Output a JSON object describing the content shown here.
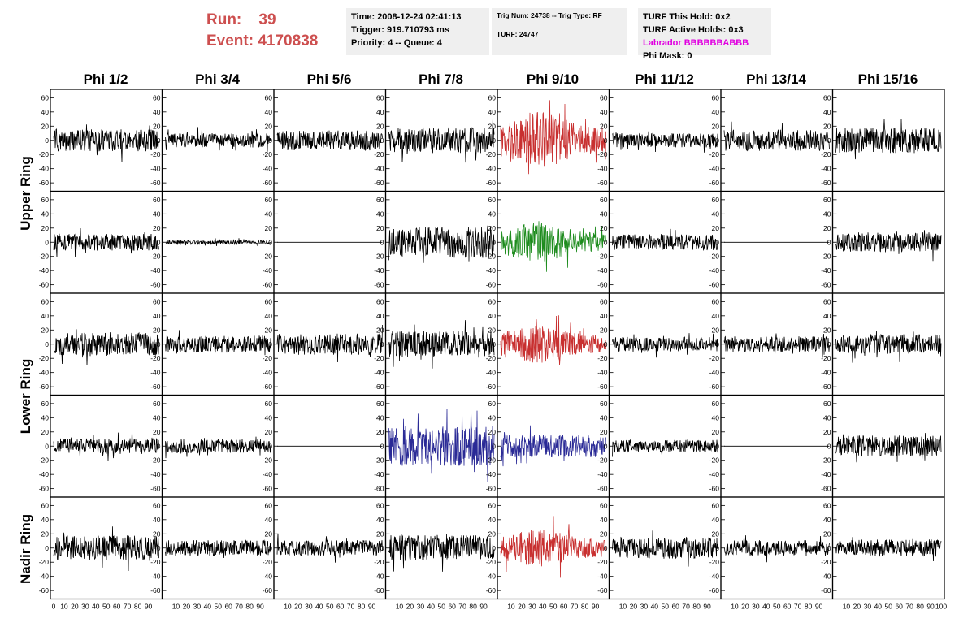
{
  "header": {
    "run_label": "Run:",
    "run_value": "39",
    "event_label": "Event:",
    "event_value": "4170838"
  },
  "info_box_1": {
    "time": "Time: 2008-12-24 02:41:13",
    "trigger": "Trigger: 919.710793 ms",
    "priority": "Priority: 4 -- Queue: 4"
  },
  "info_box_2": {
    "trig": "Trig Num: 24738 -- Trig Type: RF",
    "turf": "TURF: 24747"
  },
  "info_box_3": {
    "hold": "TURF This Hold: 0x2",
    "active": "TURF Active Holds: 0x3",
    "labrador": "Labrador BBBBBBABBB",
    "phi_mask": "Phi Mask: 0"
  },
  "columns": [
    "Phi 1/2",
    "Phi 3/4",
    "Phi 5/6",
    "Phi 7/8",
    "Phi 9/10",
    "Phi 11/12",
    "Phi 13/14",
    "Phi 15/16"
  ],
  "rings": [
    "Upper Ring",
    "Lower Ring",
    "Nadir Ring"
  ],
  "colors": {
    "trace": "#000000",
    "red": "#c83030",
    "green": "#1e8c1e",
    "blue": "#2a2a96",
    "header_red": "#cd4f4f",
    "magenta": "#e000e0"
  },
  "chart_data": {
    "type": "line",
    "ylim": [
      -65,
      65
    ],
    "xlim": [
      0,
      100
    ],
    "y_ticks": [
      -60,
      -40,
      -20,
      0,
      20,
      40,
      60
    ],
    "x_ticks": [
      0,
      10,
      20,
      30,
      40,
      50,
      60,
      70,
      80,
      90,
      100
    ],
    "x_tick_labels_last_col": [
      "10",
      "20",
      "30",
      "40",
      "50",
      "60",
      "70",
      "80",
      "90",
      "100"
    ],
    "panel_rows": 5,
    "panel_cols": 8,
    "panels": [
      [
        {
          "amp": 16,
          "color": "trace"
        },
        {
          "amp": 10,
          "color": "trace"
        },
        {
          "amp": 14,
          "color": "trace"
        },
        {
          "amp": 18,
          "color": "trace"
        },
        {
          "amp": 32,
          "color": "red"
        },
        {
          "amp": 10,
          "color": "trace"
        },
        {
          "amp": 15,
          "color": "trace"
        },
        {
          "amp": 18,
          "color": "trace"
        }
      ],
      [
        {
          "amp": 12,
          "color": "trace"
        },
        {
          "amp": 3,
          "color": "trace"
        },
        {
          "amp": 0,
          "color": "trace"
        },
        {
          "amp": 22,
          "color": "trace"
        },
        {
          "amp": 22,
          "color": "green"
        },
        {
          "amp": 11,
          "color": "trace"
        },
        {
          "amp": 0,
          "color": "trace"
        },
        {
          "amp": 14,
          "color": "trace"
        }
      ],
      [
        {
          "amp": 16,
          "color": "trace"
        },
        {
          "amp": 12,
          "color": "trace"
        },
        {
          "amp": 15,
          "color": "trace"
        },
        {
          "amp": 19,
          "color": "trace"
        },
        {
          "amp": 22,
          "color": "red"
        },
        {
          "amp": 10,
          "color": "trace"
        },
        {
          "amp": 11,
          "color": "trace"
        },
        {
          "amp": 14,
          "color": "trace"
        }
      ],
      [
        {
          "amp": 11,
          "color": "trace"
        },
        {
          "amp": 10,
          "color": "trace"
        },
        {
          "amp": 0,
          "color": "trace"
        },
        {
          "amp": 28,
          "color": "blue"
        },
        {
          "amp": 16,
          "color": "blue"
        },
        {
          "amp": 9,
          "color": "trace"
        },
        {
          "amp": 0,
          "color": "trace"
        },
        {
          "amp": 15,
          "color": "trace"
        }
      ],
      [
        {
          "amp": 18,
          "color": "trace"
        },
        {
          "amp": 11,
          "color": "trace"
        },
        {
          "amp": 11,
          "color": "trace"
        },
        {
          "amp": 18,
          "color": "trace"
        },
        {
          "amp": 22,
          "color": "red"
        },
        {
          "amp": 15,
          "color": "trace"
        },
        {
          "amp": 11,
          "color": "trace"
        },
        {
          "amp": 12,
          "color": "trace"
        }
      ]
    ]
  }
}
